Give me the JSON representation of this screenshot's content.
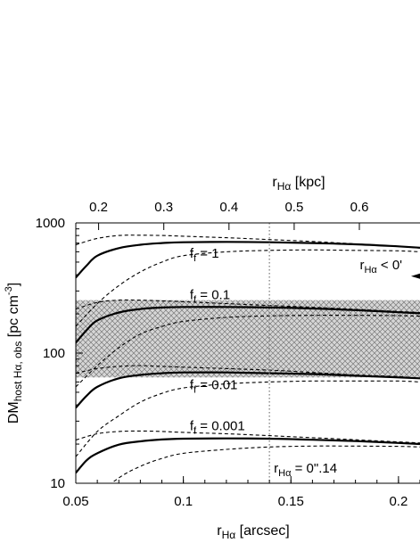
{
  "chart_data": {
    "type": "line",
    "xlabel": "r",
    "xlabel_sub": "Hα",
    "xlabel_unit": " [arcsec]",
    "x2label": "r",
    "x2label_sub": "Hα",
    "x2label_unit": " [kpc]",
    "ylabel": "DM",
    "ylabel_sub": "host Hα, obs",
    "ylabel_unit": " [pc cm",
    "ylabel_exp": "-3",
    "ylabel_close": "]",
    "xlim": [
      0.05,
      0.21
    ],
    "ylim": [
      10,
      1000
    ],
    "yscale": "log",
    "xticks": [
      "0.05",
      "0.1",
      "0.15",
      "0.2"
    ],
    "xtick_values": [
      0.05,
      0.1,
      0.15,
      0.2
    ],
    "x2ticks": [
      "0.2",
      "0.3",
      "0.4",
      "0.5",
      "0.6"
    ],
    "x2tick_values": [
      0.2,
      0.3,
      0.4,
      0.5,
      0.6
    ],
    "kpc_per_arcsec": 3.3,
    "yticks": [
      "10",
      "100",
      "1000"
    ],
    "ytick_values": [
      10,
      100,
      1000
    ],
    "vline": {
      "x": 0.14,
      "label_main": "r",
      "label_sub": "Hα",
      "label_rest": " = 0\".14"
    },
    "band": {
      "y_low": 65,
      "y_high": 255
    },
    "series": [
      {
        "name": "f",
        "name_sub": "f",
        "name_rest": " = 1",
        "label_at": [
          0.103,
          540
        ],
        "central": {
          "x": [
            0.05,
            0.055,
            0.06,
            0.07,
            0.08,
            0.09,
            0.1,
            0.12,
            0.14,
            0.16,
            0.18,
            0.2,
            0.21
          ],
          "y": [
            380,
            470,
            560,
            640,
            680,
            700,
            710,
            715,
            710,
            700,
            685,
            660,
            645
          ]
        },
        "upper": {
          "x": [
            0.05,
            0.06,
            0.07,
            0.08,
            0.09,
            0.1,
            0.12,
            0.14,
            0.16,
            0.18,
            0.2,
            0.21
          ],
          "y": [
            680,
            760,
            800,
            805,
            800,
            790,
            770,
            745,
            720,
            690,
            660,
            640
          ]
        },
        "lower": {
          "x": [
            0.05,
            0.06,
            0.07,
            0.08,
            0.09,
            0.1,
            0.12,
            0.14,
            0.16,
            0.18,
            0.2,
            0.21
          ],
          "y": [
            160,
            240,
            330,
            420,
            500,
            560,
            600,
            615,
            620,
            615,
            610,
            600
          ]
        }
      },
      {
        "name": "f",
        "name_sub": "f",
        "name_rest": " = 0.1",
        "label_at": [
          0.103,
          260
        ],
        "central": {
          "x": [
            0.05,
            0.055,
            0.06,
            0.07,
            0.08,
            0.09,
            0.1,
            0.12,
            0.14,
            0.16,
            0.18,
            0.2,
            0.21
          ],
          "y": [
            120,
            150,
            178,
            205,
            218,
            224,
            226,
            226,
            224,
            220,
            214,
            206,
            202
          ]
        },
        "upper": {
          "x": [
            0.05,
            0.06,
            0.07,
            0.08,
            0.09,
            0.1,
            0.12,
            0.14,
            0.16,
            0.18,
            0.2,
            0.21
          ],
          "y": [
            218,
            245,
            255,
            255,
            252,
            248,
            240,
            232,
            225,
            217,
            209,
            205
          ]
        },
        "lower": {
          "x": [
            0.05,
            0.06,
            0.07,
            0.08,
            0.09,
            0.1,
            0.12,
            0.14,
            0.16,
            0.18,
            0.2,
            0.21
          ],
          "y": [
            55,
            80,
            110,
            140,
            160,
            175,
            188,
            193,
            195,
            195,
            194,
            192
          ]
        }
      },
      {
        "name": "f",
        "name_sub": "f",
        "name_rest": " = 0.01",
        "label_at": [
          0.103,
          53
        ],
        "central": {
          "x": [
            0.05,
            0.055,
            0.06,
            0.07,
            0.08,
            0.09,
            0.1,
            0.12,
            0.14,
            0.16,
            0.18,
            0.2,
            0.21
          ],
          "y": [
            38,
            47,
            55,
            64,
            68,
            70,
            71,
            71,
            70,
            69,
            67,
            65,
            64
          ]
        },
        "upper": {
          "x": [
            0.05,
            0.06,
            0.07,
            0.08,
            0.09,
            0.1,
            0.12,
            0.14,
            0.16,
            0.18,
            0.2,
            0.21
          ],
          "y": [
            70,
            76,
            79,
            80,
            79,
            78,
            76,
            74,
            71,
            68,
            66,
            64
          ]
        },
        "lower": {
          "x": [
            0.05,
            0.06,
            0.07,
            0.08,
            0.09,
            0.1,
            0.12,
            0.14,
            0.16,
            0.18,
            0.2,
            0.21
          ],
          "y": [
            16,
            25,
            33,
            42,
            49,
            54,
            58,
            60,
            61,
            61,
            61,
            60
          ]
        }
      },
      {
        "name": "f",
        "name_sub": "f",
        "name_rest": " = 0.001",
        "label_at": [
          0.103,
          25.5
        ],
        "central": {
          "x": [
            0.05,
            0.055,
            0.06,
            0.07,
            0.08,
            0.09,
            0.1,
            0.12,
            0.14,
            0.16,
            0.18,
            0.2,
            0.21
          ],
          "y": [
            12,
            15,
            17,
            19.8,
            21,
            21.7,
            22,
            22.1,
            22,
            21.6,
            21.1,
            20.4,
            20
          ]
        },
        "upper": {
          "x": [
            0.05,
            0.06,
            0.07,
            0.08,
            0.09,
            0.1,
            0.12,
            0.14,
            0.16,
            0.18,
            0.2,
            0.21
          ],
          "y": [
            21.5,
            24,
            25,
            25.2,
            25,
            24.6,
            24,
            23.2,
            22.4,
            21.6,
            20.8,
            20.4
          ]
        },
        "lower": {
          "x": [
            0.05,
            0.06,
            0.07,
            0.08,
            0.09,
            0.1,
            0.12,
            0.14,
            0.16,
            0.18,
            0.2,
            0.21
          ],
          "y": [
            5,
            8,
            11,
            13.5,
            15.5,
            17,
            18.2,
            19,
            19.3,
            19.3,
            19.2,
            19
          ]
        }
      }
    ],
    "annotation": {
      "text_main": "r",
      "text_sub": "Hα",
      "text_rest": " < 0'",
      "x": 0.182,
      "y": 440,
      "arrow_y": 390
    }
  }
}
